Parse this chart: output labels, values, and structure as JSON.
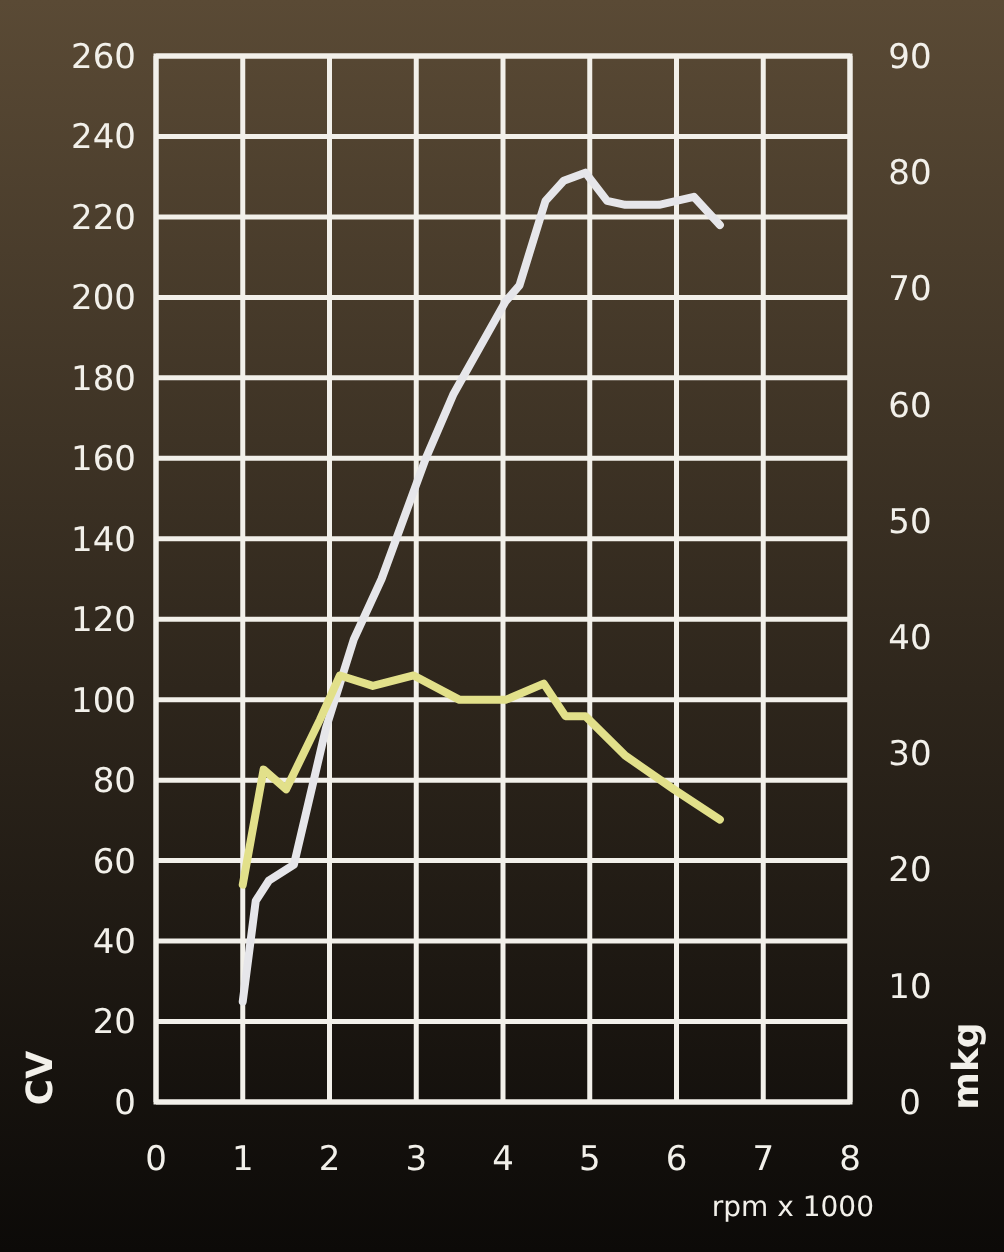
{
  "chart_data": {
    "type": "line",
    "xlabel": "rpm x 1000",
    "ylabel": "CV",
    "y2label": "mkg",
    "xlim": [
      0,
      8
    ],
    "xticks": [
      0,
      1,
      2,
      3,
      4,
      5,
      6,
      7,
      8
    ],
    "ylim": [
      0,
      260
    ],
    "yticks": [
      0,
      20,
      40,
      60,
      80,
      100,
      120,
      140,
      160,
      180,
      200,
      220,
      240,
      260
    ],
    "y2lim": [
      0,
      90
    ],
    "y2ticks": [
      0,
      10,
      20,
      30,
      40,
      50,
      60,
      70,
      80,
      90
    ],
    "grid": true,
    "marker": "none",
    "line_style": "solid",
    "series": [
      {
        "color": "#e6e6ea",
        "x": [
          1,
          1.15,
          1.3,
          1.59,
          1.96,
          2.28,
          2.6,
          3.11,
          3.43,
          4.03,
          4.19,
          4.49,
          4.7,
          4.95,
          5.2,
          5.41,
          5.8,
          6.2,
          6.5
        ],
        "values": [
          25,
          50,
          55,
          59,
          93,
          115,
          130,
          160,
          176,
          199,
          203,
          224,
          229,
          231,
          224,
          223,
          223,
          225,
          218
        ]
      },
      {
        "color": "#e2e08a",
        "axis": "y2",
        "x": [
          1,
          1.24,
          1.5,
          1.89,
          2.12,
          2.5,
          2.97,
          3.5,
          4.03,
          4.47,
          4.72,
          4.95,
          5.41,
          5.97,
          6.5
        ],
        "values": [
          18.7,
          28.6,
          26.9,
          32.9,
          36.7,
          35.8,
          36.7,
          34.6,
          34.6,
          36,
          33.2,
          33.2,
          29.8,
          26.9,
          24.3
        ]
      }
    ]
  }
}
